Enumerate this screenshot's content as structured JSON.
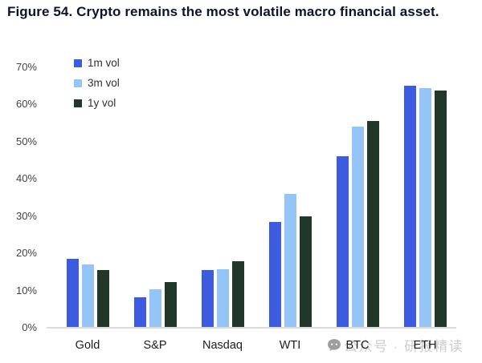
{
  "title": "Figure 54. Crypto remains the most volatile macro financial asset.",
  "watermark": {
    "text": "公众号 · 研报精读",
    "icon": "wechat-chat-bubble-icon"
  },
  "chart_data": {
    "type": "bar",
    "title": "Figure 54. Crypto remains the most volatile macro financial asset.",
    "categories": [
      "Gold",
      "S&P",
      "Nasdaq",
      "WTI",
      "BTC",
      "ETH"
    ],
    "series": [
      {
        "name": "1m vol",
        "color": "#3d5bde",
        "values": [
          18.5,
          8.2,
          15.4,
          28.5,
          46,
          65
        ]
      },
      {
        "name": "3m vol",
        "color": "#95c5f6",
        "values": [
          17.1,
          10.4,
          15.7,
          36,
          54,
          64.3
        ]
      },
      {
        "name": "1y vol",
        "color": "#20372a",
        "values": [
          15.4,
          12.2,
          17.9,
          30,
          55.5,
          63.7
        ]
      }
    ],
    "xlabel": "",
    "ylabel": "",
    "ylim": [
      0,
      70
    ],
    "ytick_step": 10,
    "ytick_format": "percent",
    "yticks": [
      "0%",
      "10%",
      "20%",
      "30%",
      "40%",
      "50%",
      "60%",
      "70%"
    ],
    "legend_position": "top-left",
    "grid": false
  },
  "colors": {
    "background": "#ffffff",
    "title_text": "#0d1232",
    "axis_line": "#dcdcdc",
    "ytick_text": "#434343",
    "xlabel_text": "#1c1c1c",
    "watermark_text": "#cdcdcd",
    "watermark_icon": "#9e9e9e"
  }
}
